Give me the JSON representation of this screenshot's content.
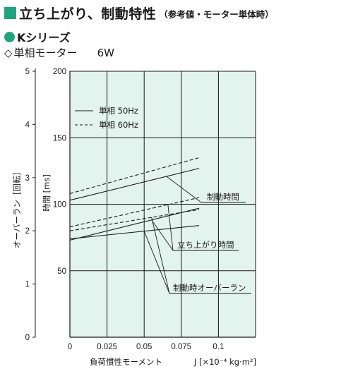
{
  "header": {
    "title": "立ち上がり、制動特性",
    "subtitle": "（参考値・モーター単体時）",
    "accent_color": "#22a37f"
  },
  "series_heading": "Kシリーズ",
  "spec": {
    "symbol": "◇",
    "label": "単相モーター",
    "power": "6W"
  },
  "chart_data": {
    "type": "line",
    "background": "#e3f3ee",
    "grid": true,
    "xlabel": "負荷慣性モーメント",
    "xunit": "J [×10⁻⁴ kg·m²]",
    "xlim": [
      0,
      0.125
    ],
    "x_ticks": [
      "0",
      "0.025",
      "0.05",
      "0.075",
      "0.1"
    ],
    "y_left_label": "オーバーラン［回転］",
    "y_left_lim": [
      0,
      5
    ],
    "y_left_ticks": [
      "0",
      "1",
      "2",
      "3",
      "4",
      "5"
    ],
    "y_right_label": "時間 [ms]",
    "y_right_lim": [
      0,
      200
    ],
    "y_right_ticks": [
      "50",
      "100",
      "150",
      "200"
    ],
    "legend": [
      {
        "label": "単相 50Hz",
        "style": "solid"
      },
      {
        "label": "単相 60Hz",
        "style": "dashed"
      }
    ],
    "series": [
      {
        "group": "制動時間",
        "freq": "50Hz",
        "style": "solid",
        "x": [
          0,
          0.087
        ],
        "y_ms": [
          103,
          127
        ]
      },
      {
        "group": "制動時間",
        "freq": "60Hz",
        "style": "dashed",
        "x": [
          0,
          0.087
        ],
        "y_ms": [
          108,
          135
        ]
      },
      {
        "group": "立ち上がり時間",
        "freq": "50Hz",
        "style": "solid",
        "x": [
          0,
          0.087
        ],
        "y_ms": [
          73,
          97
        ]
      },
      {
        "group": "立ち上がり時間",
        "freq": "60Hz",
        "style": "dashed",
        "x": [
          0,
          0.087
        ],
        "y_ms": [
          83,
          105
        ]
      },
      {
        "group": "制動時オーバーラン",
        "freq": "50Hz",
        "style": "solid",
        "x": [
          0,
          0.087
        ],
        "y_turns": [
          1.85,
          2.1
        ]
      },
      {
        "group": "制動時オーバーラン",
        "freq": "60Hz",
        "style": "dashed",
        "x": [
          0,
          0.087
        ],
        "y_turns": [
          2.0,
          2.4
        ]
      }
    ],
    "annotations": [
      "制動時間",
      "立ち上がり時間",
      "制動時オーバーラン"
    ]
  }
}
